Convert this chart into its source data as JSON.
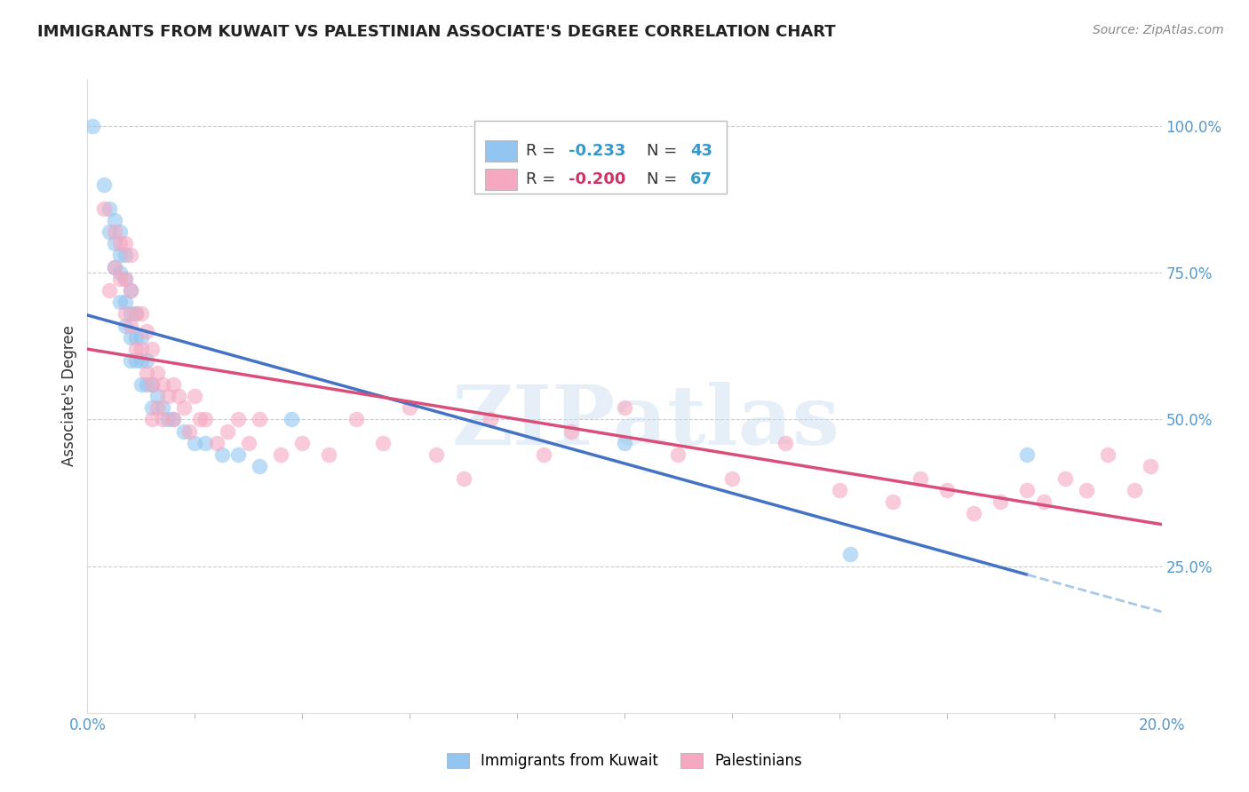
{
  "title": "IMMIGRANTS FROM KUWAIT VS PALESTINIAN ASSOCIATE'S DEGREE CORRELATION CHART",
  "source": "Source: ZipAtlas.com",
  "ylabel": "Associate's Degree",
  "ylabel_right_ticks": [
    "100.0%",
    "75.0%",
    "50.0%",
    "25.0%"
  ],
  "ylabel_right_vals": [
    1.0,
    0.75,
    0.5,
    0.25
  ],
  "x_min": 0.0,
  "x_max": 0.2,
  "y_min": 0.0,
  "y_max": 1.08,
  "legend_R1": "-0.233",
  "legend_N1": "43",
  "legend_R2": "-0.200",
  "legend_N2": "67",
  "color_kuwait": "#92C5F0",
  "color_palestine": "#F5A8C0",
  "color_trend_kuwait": "#4472C4",
  "color_trend_palestine": "#D94F7A",
  "color_dashed_extension": "#A8C8E8",
  "watermark": "ZIPatlas",
  "kuwait_x": [
    0.001,
    0.003,
    0.004,
    0.004,
    0.005,
    0.005,
    0.005,
    0.006,
    0.006,
    0.006,
    0.006,
    0.007,
    0.007,
    0.007,
    0.007,
    0.008,
    0.008,
    0.008,
    0.008,
    0.009,
    0.009,
    0.009,
    0.01,
    0.01,
    0.01,
    0.011,
    0.011,
    0.012,
    0.012,
    0.013,
    0.014,
    0.015,
    0.016,
    0.018,
    0.02,
    0.022,
    0.025,
    0.028,
    0.032,
    0.038,
    0.1,
    0.142,
    0.175
  ],
  "kuwait_y": [
    1.0,
    0.9,
    0.86,
    0.82,
    0.84,
    0.8,
    0.76,
    0.82,
    0.78,
    0.75,
    0.7,
    0.78,
    0.74,
    0.7,
    0.66,
    0.72,
    0.68,
    0.64,
    0.6,
    0.68,
    0.64,
    0.6,
    0.64,
    0.6,
    0.56,
    0.6,
    0.56,
    0.56,
    0.52,
    0.54,
    0.52,
    0.5,
    0.5,
    0.48,
    0.46,
    0.46,
    0.44,
    0.44,
    0.42,
    0.5,
    0.46,
    0.27,
    0.44
  ],
  "palestine_x": [
    0.003,
    0.004,
    0.005,
    0.005,
    0.006,
    0.006,
    0.007,
    0.007,
    0.007,
    0.008,
    0.008,
    0.008,
    0.009,
    0.009,
    0.01,
    0.01,
    0.011,
    0.011,
    0.012,
    0.012,
    0.012,
    0.013,
    0.013,
    0.014,
    0.014,
    0.015,
    0.016,
    0.016,
    0.017,
    0.018,
    0.019,
    0.02,
    0.021,
    0.022,
    0.024,
    0.026,
    0.028,
    0.03,
    0.032,
    0.036,
    0.04,
    0.045,
    0.05,
    0.055,
    0.06,
    0.065,
    0.07,
    0.075,
    0.085,
    0.09,
    0.1,
    0.11,
    0.12,
    0.13,
    0.14,
    0.15,
    0.155,
    0.16,
    0.165,
    0.17,
    0.175,
    0.178,
    0.182,
    0.186,
    0.19,
    0.195,
    0.198
  ],
  "palestine_y": [
    0.86,
    0.72,
    0.82,
    0.76,
    0.8,
    0.74,
    0.8,
    0.74,
    0.68,
    0.78,
    0.72,
    0.66,
    0.68,
    0.62,
    0.68,
    0.62,
    0.65,
    0.58,
    0.62,
    0.56,
    0.5,
    0.58,
    0.52,
    0.56,
    0.5,
    0.54,
    0.56,
    0.5,
    0.54,
    0.52,
    0.48,
    0.54,
    0.5,
    0.5,
    0.46,
    0.48,
    0.5,
    0.46,
    0.5,
    0.44,
    0.46,
    0.44,
    0.5,
    0.46,
    0.52,
    0.44,
    0.4,
    0.5,
    0.44,
    0.48,
    0.52,
    0.44,
    0.4,
    0.46,
    0.38,
    0.36,
    0.4,
    0.38,
    0.34,
    0.36,
    0.38,
    0.36,
    0.4,
    0.38,
    0.44,
    0.38,
    0.42
  ]
}
